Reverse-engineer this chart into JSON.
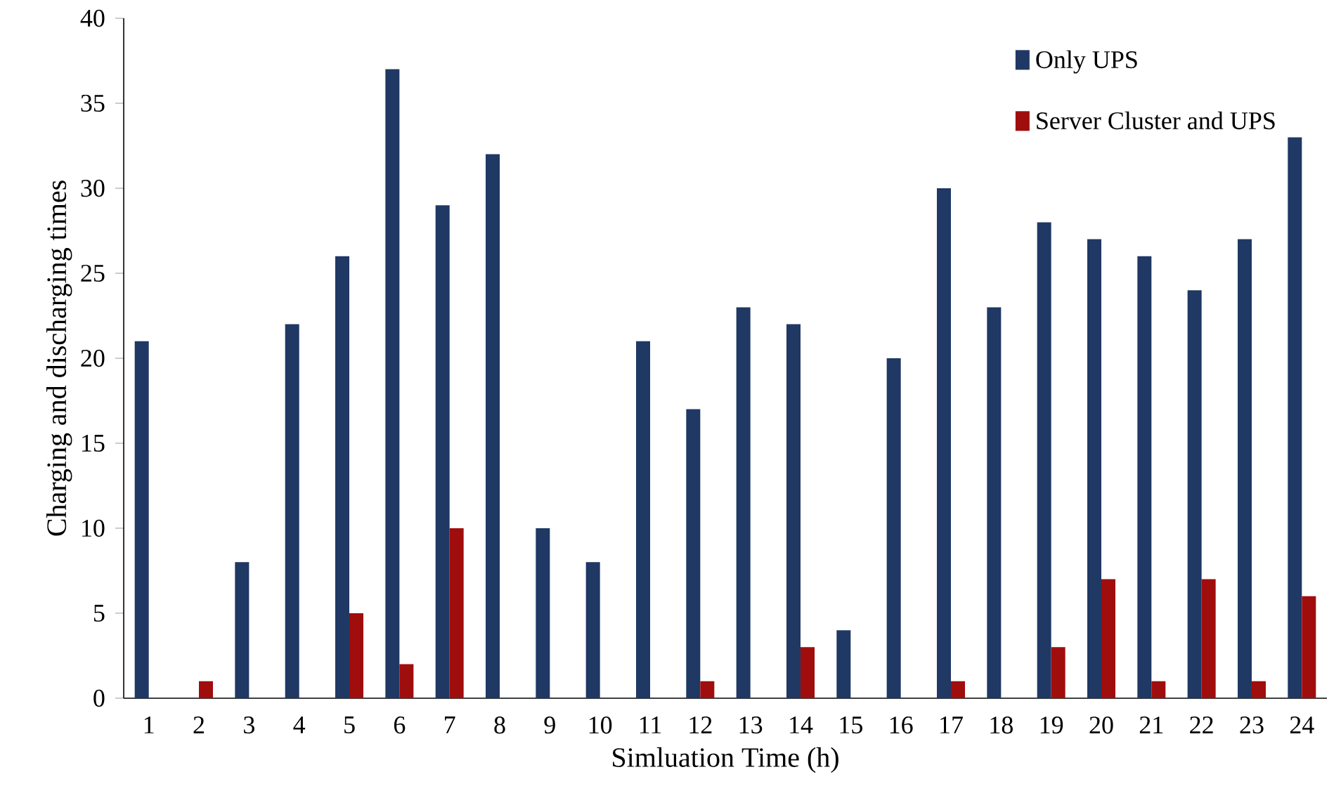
{
  "chart_data": {
    "type": "bar",
    "xlabel": "Simluation Time (h)",
    "ylabel": "Charging and discharging times",
    "categories": [
      "1",
      "2",
      "3",
      "4",
      "5",
      "6",
      "7",
      "8",
      "9",
      "10",
      "11",
      "12",
      "13",
      "14",
      "15",
      "16",
      "17",
      "18",
      "19",
      "20",
      "21",
      "22",
      "23",
      "24"
    ],
    "series": [
      {
        "name": "Only UPS",
        "color": "#1f3864",
        "values": [
          21,
          0,
          8,
          22,
          26,
          37,
          29,
          32,
          10,
          8,
          21,
          17,
          23,
          22,
          4,
          20,
          30,
          23,
          28,
          27,
          26,
          24,
          27,
          33
        ]
      },
      {
        "name": "Server Cluster and UPS",
        "color": "#a00d0d",
        "values": [
          0,
          1,
          0,
          0,
          5,
          2,
          10,
          0,
          0,
          0,
          0,
          1,
          0,
          3,
          0,
          0,
          1,
          0,
          3,
          7,
          1,
          7,
          1,
          6
        ]
      }
    ],
    "ylim": [
      0,
      40
    ],
    "yticks": [
      0,
      5,
      10,
      15,
      20,
      25,
      30,
      35,
      40
    ],
    "grid": false,
    "legend": "top right"
  }
}
